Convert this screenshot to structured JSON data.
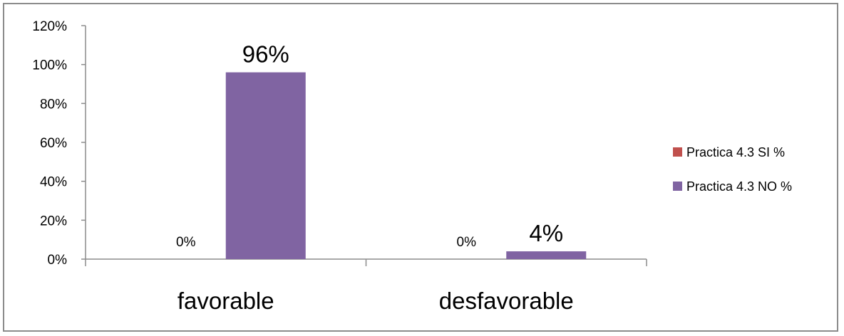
{
  "chart_data": {
    "type": "bar",
    "categories": [
      "favorable",
      "desfavorable"
    ],
    "series": [
      {
        "name": "Practica 4.3 SI %",
        "values": [
          0,
          0
        ],
        "data_labels": [
          "0%",
          "0%"
        ],
        "color": "#c0504d"
      },
      {
        "name": "Practica 4.3 NO %",
        "values": [
          96,
          4
        ],
        "data_labels": [
          "96%",
          "4%"
        ],
        "color": "#8064a2"
      }
    ],
    "y_ticks": [
      "0%",
      "20%",
      "40%",
      "60%",
      "80%",
      "100%",
      "120%"
    ],
    "ylim": [
      0,
      120
    ],
    "grid": false,
    "legend_position": "right",
    "axis_color": "#8c8c8c"
  }
}
